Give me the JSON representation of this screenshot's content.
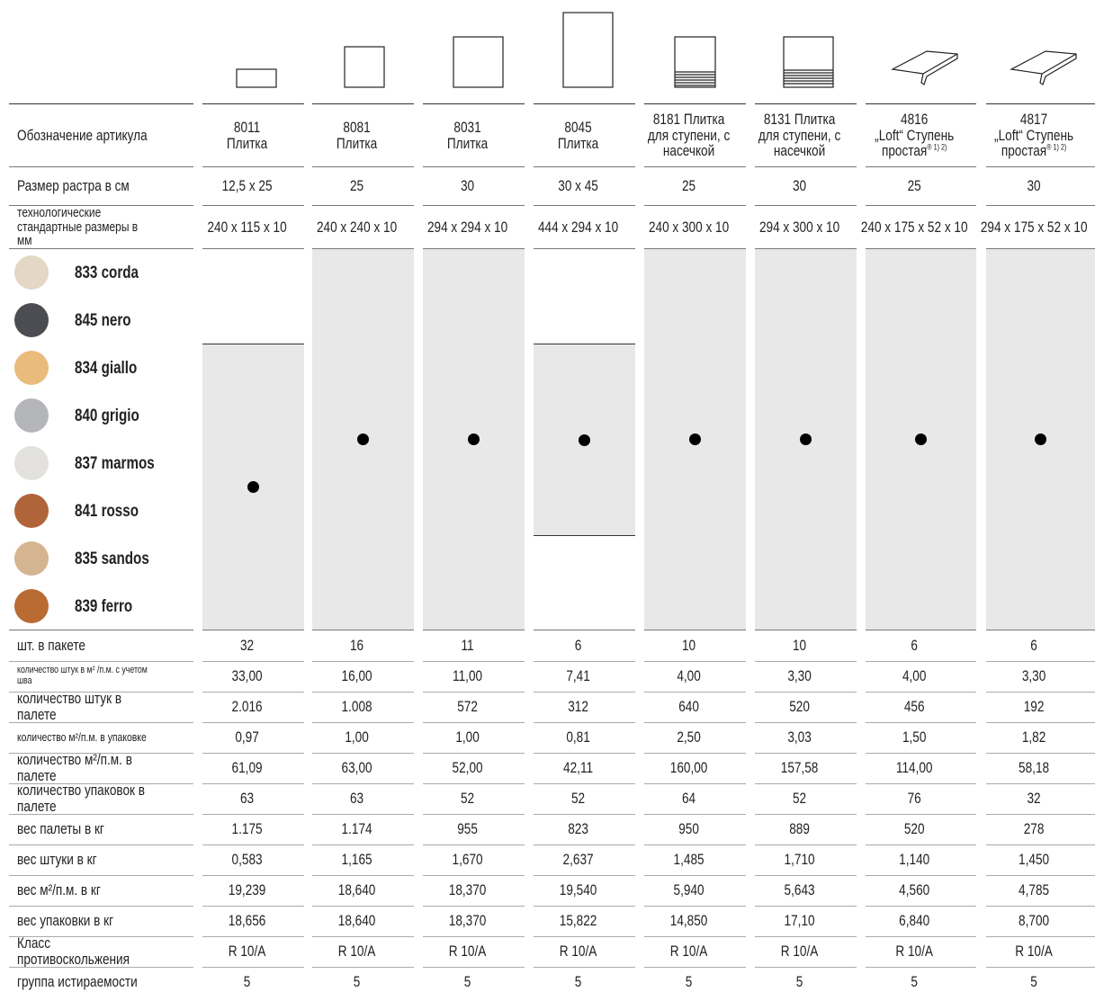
{
  "header_labels": [
    "Обозначение артикула",
    "Размер растра в см",
    "технологические стандартные размеры в мм"
  ],
  "columns": [
    {
      "code": "8011",
      "name": "Плитка",
      "grid": "12,5 x 25",
      "size": "240 x 115 x 10",
      "available": [
        false,
        false,
        true,
        true,
        true,
        true,
        true,
        true
      ]
    },
    {
      "code": "8081",
      "name": "Плитка",
      "grid": "25",
      "size": "240 x 240 x 10",
      "available": [
        true,
        true,
        true,
        true,
        true,
        true,
        true,
        true
      ]
    },
    {
      "code": "8031",
      "name": "Плитка",
      "grid": "30",
      "size": "294 x 294 x 10",
      "available": [
        true,
        true,
        true,
        true,
        true,
        true,
        true,
        true
      ]
    },
    {
      "code": "8045",
      "name": "Плитка",
      "grid": "30 x 45",
      "size": "444 x 294 x 10",
      "available": [
        false,
        false,
        true,
        true,
        true,
        true,
        false,
        false
      ]
    },
    {
      "code": "8181",
      "name": "Плитка для ступени, с насечкой",
      "grid": "25",
      "size": "240 x 300 x 10",
      "available": [
        true,
        true,
        true,
        true,
        true,
        true,
        true,
        true
      ]
    },
    {
      "code": "8131",
      "name": "Плитка для ступени, с насечкой",
      "grid": "30",
      "size": "294 x 300 x 10",
      "available": [
        true,
        true,
        true,
        true,
        true,
        true,
        true,
        true
      ]
    },
    {
      "code": "4816",
      "name": "„Loft“ Ступень простая",
      "note": "® 1) 2)",
      "grid": "25",
      "size": "240 x 175 x 52  x 10",
      "available": [
        true,
        true,
        true,
        true,
        true,
        true,
        true,
        true
      ]
    },
    {
      "code": "4817",
      "name": "„Loft“ Ступень простая",
      "note": "® 1) 2)",
      "grid": "30",
      "size": "294 x 175 x 52 x 10",
      "available": [
        true,
        true,
        true,
        true,
        true,
        true,
        true,
        true
      ]
    }
  ],
  "colors": [
    {
      "name": "833 corda",
      "color": "#e5d7c6"
    },
    {
      "name": "845 nero",
      "color": "#4b4d52"
    },
    {
      "name": "834 giallo",
      "color": "#e9bb7d"
    },
    {
      "name": "840 grigio",
      "color": "#b4b6ba"
    },
    {
      "name": "837 marmos",
      "color": "#e3e1dd"
    },
    {
      "name": "841 rosso",
      "color": "#b0643a"
    },
    {
      "name": "835 sandos",
      "color": "#d5b492"
    },
    {
      "name": "839 ferro",
      "color": "#b96b34"
    }
  ],
  "rows": [
    {
      "label": "шт. в пакете",
      "values": [
        "32",
        "16",
        "11",
        "6",
        "10",
        "10",
        "6",
        "6"
      ]
    },
    {
      "label": "количество штук в м² /п.м. с учетом шва",
      "values": [
        "33,00",
        "16,00",
        "11,00",
        "7,41",
        "4,00",
        "3,30",
        "4,00",
        "3,30"
      ]
    },
    {
      "label": "количество штук в палете",
      "values": [
        "2.016",
        "1.008",
        "572",
        "312",
        "640",
        "520",
        "456",
        "192"
      ]
    },
    {
      "label": "количество м²/п.м. в упаковке",
      "values": [
        "0,97",
        "1,00",
        "1,00",
        "0,81",
        "2,50",
        "3,03",
        "1,50",
        "1,82"
      ]
    },
    {
      "label": "количество м²/п.м. в палете",
      "values": [
        "61,09",
        "63,00",
        "52,00",
        "42,11",
        "160,00",
        "157,58",
        "114,00",
        "58,18"
      ]
    },
    {
      "label": "количество упаковок в палете",
      "values": [
        "63",
        "63",
        "52",
        "52",
        "64",
        "52",
        "76",
        "32"
      ]
    },
    {
      "label": "вес палеты в кг",
      "values": [
        "1.175",
        "1.174",
        "955",
        "823",
        "950",
        "889",
        "520",
        "278"
      ]
    },
    {
      "label": "вес штуки в кг",
      "values": [
        "0,583",
        "1,165",
        "1,670",
        "2,637",
        "1,485",
        "1,710",
        "1,140",
        "1,450"
      ]
    },
    {
      "label": "вес м²/п.м. в кг",
      "values": [
        "19,239",
        "18,640",
        "18,370",
        "19,540",
        "5,940",
        "5,643",
        "4,560",
        "4,785"
      ]
    },
    {
      "label": "вес упаковки в кг",
      "values": [
        "18,656",
        "18,640",
        "18,370",
        "15,822",
        "14,850",
        "17,10",
        "6,840",
        "8,700"
      ]
    },
    {
      "label": "Класс противоскольжения",
      "values": [
        "R 10/A",
        "R 10/A",
        "R 10/A",
        "R 10/A",
        "R 10/A",
        "R 10/A",
        "R 10/A",
        "R 10/A"
      ]
    },
    {
      "label": "группа истираемости",
      "values": [
        "5",
        "5",
        "5",
        "5",
        "5",
        "5",
        "5",
        "5"
      ]
    }
  ]
}
